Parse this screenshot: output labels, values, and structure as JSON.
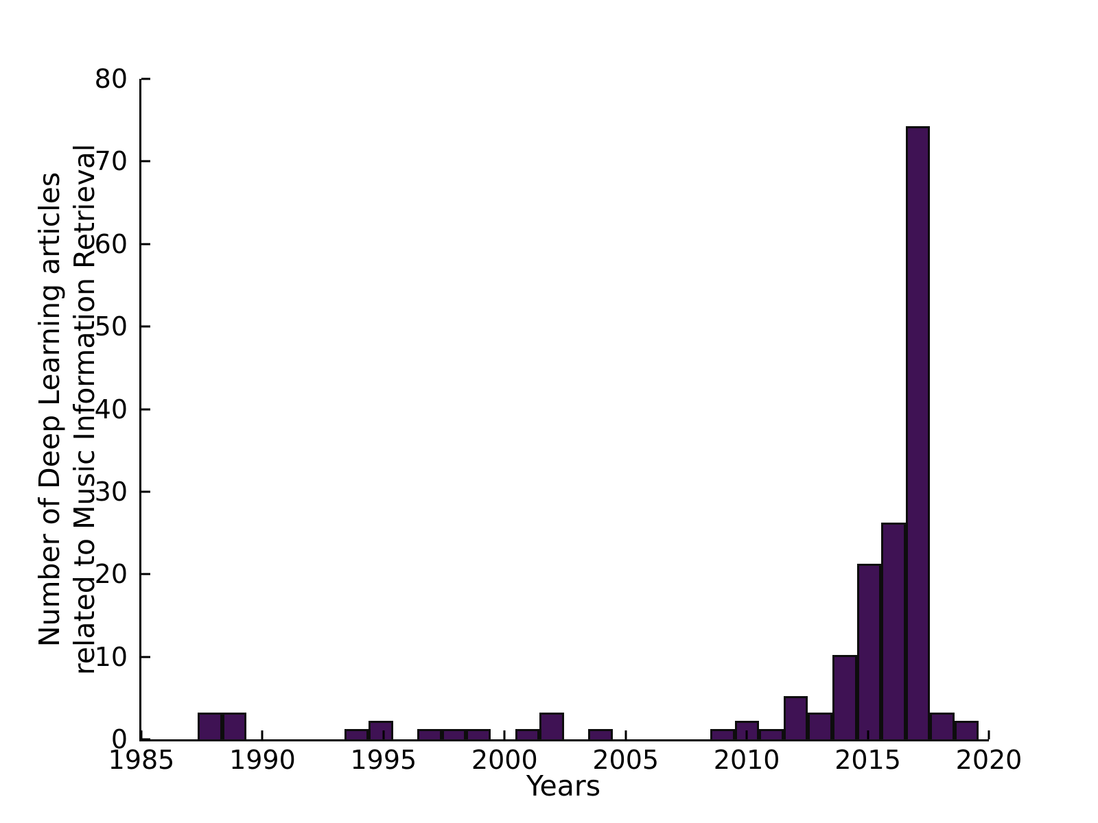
{
  "chart_data": {
    "type": "bar",
    "title": "",
    "xlabel": "Years",
    "ylabel_line1": "Number of Deep Learning articles",
    "ylabel_line2": "related to Music Information Retrieval",
    "categories": [
      1988,
      1989,
      1990,
      1991,
      1992,
      1993,
      1994,
      1995,
      1996,
      1997,
      1998,
      1999,
      2000,
      2001,
      2002,
      2003,
      2004,
      2005,
      2006,
      2007,
      2008,
      2009,
      2010,
      2011,
      2012,
      2013,
      2014,
      2015,
      2016,
      2017,
      2018,
      2019
    ],
    "values": [
      3,
      3,
      0,
      0,
      0,
      0,
      1,
      2,
      0,
      1,
      1,
      1,
      0,
      1,
      3,
      0,
      1,
      0,
      0,
      0,
      0,
      1,
      2,
      1,
      5,
      3,
      10,
      21,
      26,
      74,
      3,
      2
    ],
    "xlim": [
      1985,
      2020
    ],
    "ylim": [
      0,
      80
    ],
    "xticks": [
      1985,
      1990,
      1995,
      2000,
      2005,
      2010,
      2015,
      2020
    ],
    "yticks": [
      0,
      10,
      20,
      30,
      40,
      50,
      60,
      70,
      80
    ],
    "bin_left_offset_years": 2.33,
    "bin_width_years": 1.008,
    "bar_color": "#3f1254",
    "bar_edge_color": "#0d0d0d",
    "axis_color": "#000000",
    "grid": "off",
    "legend": "none"
  }
}
